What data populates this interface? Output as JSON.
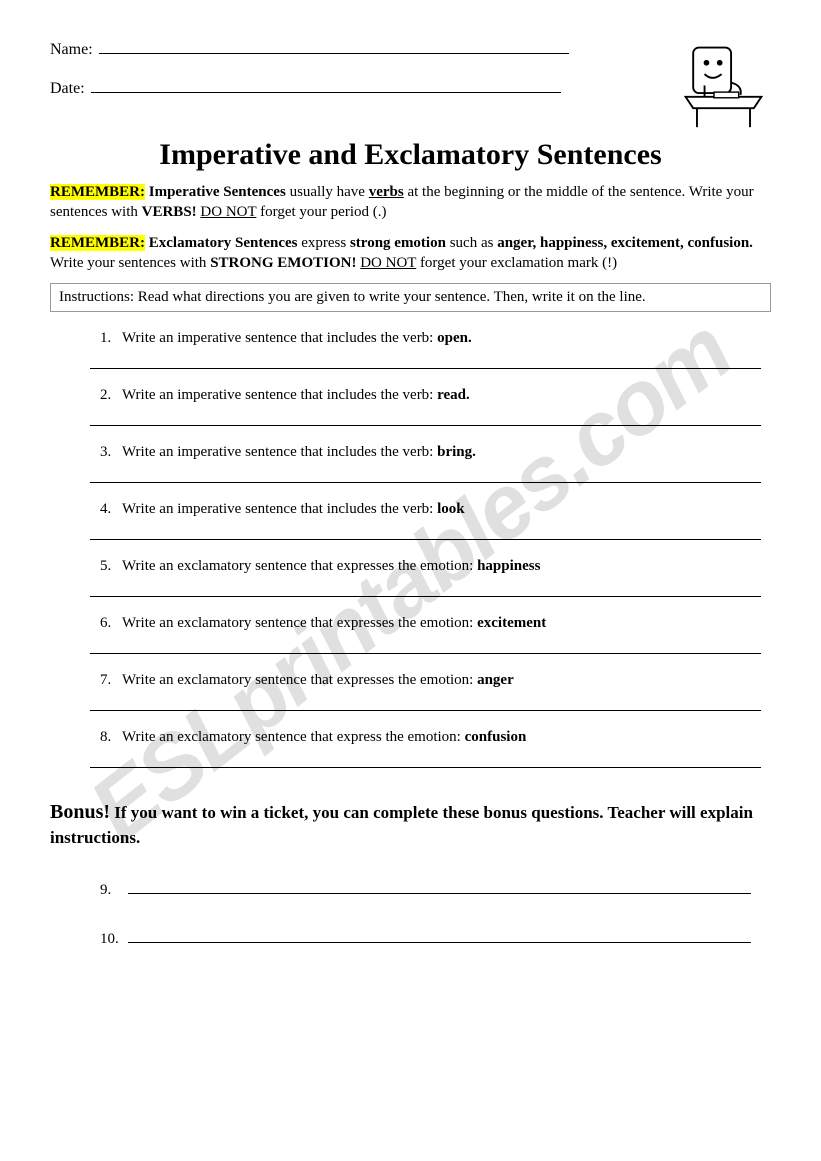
{
  "header": {
    "name_label": "Name:",
    "date_label": "Date:"
  },
  "title": "Imperative and Exclamatory Sentences",
  "remember1": {
    "tag": "REMEMBER:",
    "lead": " Imperative Sentences",
    "mid1": " usually have ",
    "verbs": "verbs",
    "mid2": " at the beginning or the middle of the sentence. Write your sentences with ",
    "verbs2": "VERBS!",
    "mid3": " ",
    "donot": "DO NOT",
    "tail": " forget your period (.)"
  },
  "remember2": {
    "tag": "REMEMBER:",
    "lead": " Exclamatory Sentences",
    "mid1": " express ",
    "strong": "strong emotion",
    "mid2": " such as ",
    "emotions": "anger, happiness, excitement, confusion.",
    "mid3": " Write your sentences with ",
    "strong2": "STRONG EMOTION!",
    "mid4": " ",
    "donot": "DO NOT",
    "tail": " forget your exclamation mark (!)"
  },
  "instructions": "Instructions: Read what directions you are given to write your sentence. Then, write it on the line.",
  "questions": [
    {
      "num": "1.",
      "prefix": "Write an imperative sentence that includes the verb: ",
      "key": "open."
    },
    {
      "num": "2.",
      "prefix": "Write an imperative sentence that includes the verb: ",
      "key": "read."
    },
    {
      "num": "3.",
      "prefix": "Write an imperative sentence that includes the verb: ",
      "key": "bring."
    },
    {
      "num": "4.",
      "prefix": "Write an imperative sentence that includes the verb: ",
      "key": "look"
    },
    {
      "num": "5.",
      "prefix": "Write an exclamatory sentence that expresses the emotion: ",
      "key": "happiness"
    },
    {
      "num": "6.",
      "prefix": "Write an exclamatory sentence that expresses the emotion: ",
      "key": "excitement"
    },
    {
      "num": "7.",
      "prefix": "Write an exclamatory sentence that expresses the emotion: ",
      "key": "anger"
    },
    {
      "num": "8.",
      "prefix": "Write an exclamatory sentence that express the emotion: ",
      "key": "confusion"
    }
  ],
  "bonus": {
    "lead": "Bonus!",
    "text": " If you want to win a ticket, you can complete these bonus questions. Teacher will explain instructions."
  },
  "bonus_items": [
    {
      "num": "9."
    },
    {
      "num": "10."
    }
  ],
  "watermark": "ESLprintables.com"
}
